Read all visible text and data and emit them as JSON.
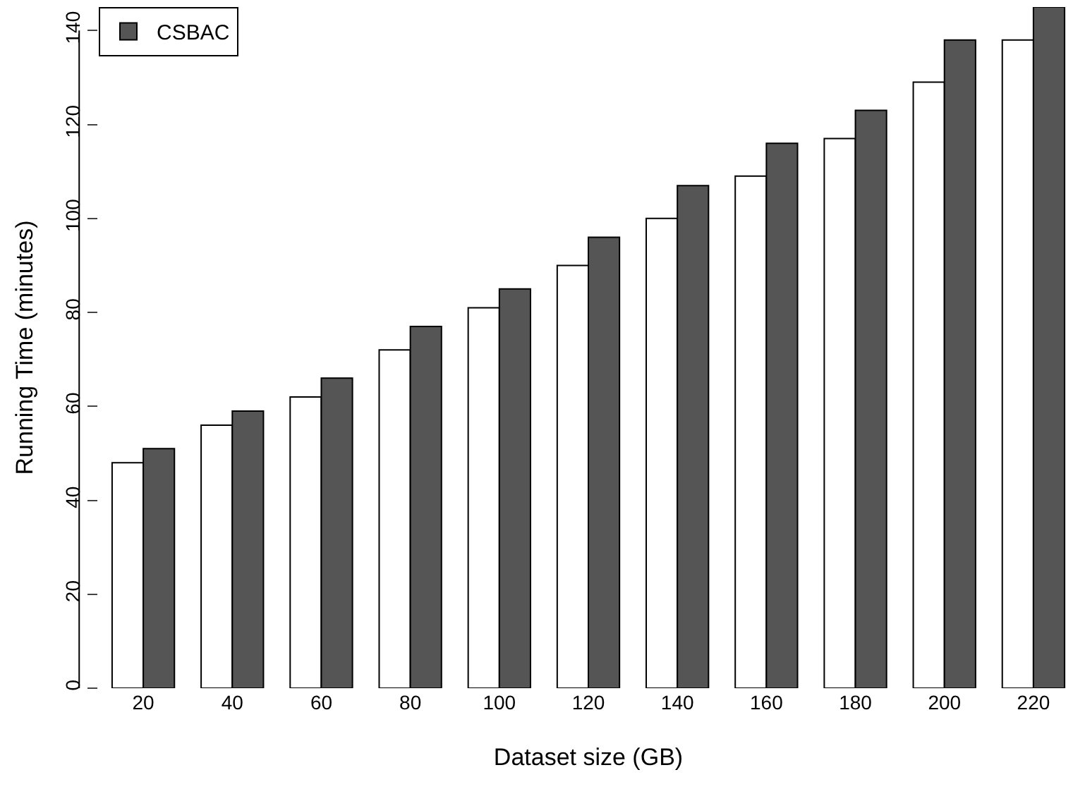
{
  "chart_data": {
    "type": "bar",
    "xlabel": "Dataset size (GB)",
    "ylabel": "Running Time (minutes)",
    "categories": [
      "20",
      "40",
      "60",
      "80",
      "100",
      "120",
      "140",
      "160",
      "180",
      "200",
      "220"
    ],
    "series": [
      {
        "color": "#ffffff",
        "values": [
          48,
          56,
          62,
          72,
          81,
          90,
          100,
          109,
          117,
          129,
          138
        ]
      },
      {
        "name": "CSBAC",
        "color": "#555555",
        "values": [
          51,
          59,
          66,
          77,
          85,
          96,
          107,
          116,
          123,
          138,
          145
        ]
      }
    ],
    "ylim": [
      0,
      145
    ],
    "yticks": [
      0,
      20,
      40,
      60,
      80,
      100,
      120,
      140
    ],
    "legend": "top left"
  }
}
